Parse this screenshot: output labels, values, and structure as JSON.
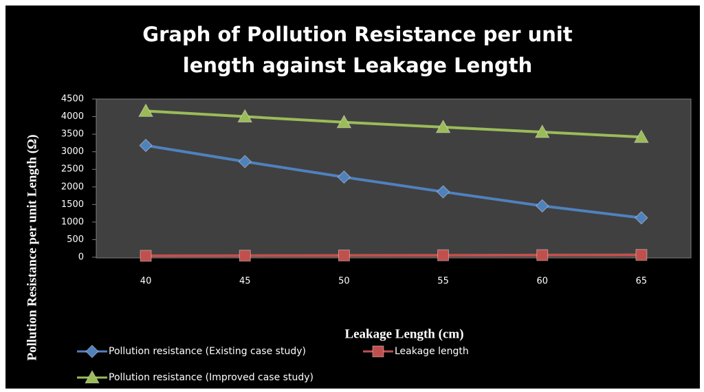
{
  "chart_data": {
    "type": "line",
    "title": "Graph of Pollution Resistance per unit length against Leakage Length",
    "x_label": "Leakage Length (cm)",
    "y_label": "Pollution Resistance per unit Length (Ω)",
    "categories": [
      "40",
      "45",
      "50",
      "55",
      "60",
      "65"
    ],
    "series": [
      {
        "name": "Pollution resistance (Existing case study)",
        "color": "#4f81bd",
        "marker": "diamond",
        "values": [
          3180,
          2720,
          2280,
          1860,
          1460,
          1120
        ]
      },
      {
        "name": "Leakage length",
        "color": "#c0504d",
        "marker": "square",
        "values": [
          40,
          45,
          50,
          55,
          60,
          65
        ]
      },
      {
        "name": "Pollution resistance (Improved case study)",
        "color": "#9bbb59",
        "marker": "triangle",
        "values": [
          4160,
          4000,
          3840,
          3700,
          3560,
          3420
        ]
      }
    ],
    "ylim": [
      0,
      4500
    ],
    "yticks": [
      0,
      500,
      1000,
      1500,
      2000,
      2500,
      3000,
      3500,
      4000,
      4500
    ],
    "grid": false,
    "legend": "bottom"
  }
}
